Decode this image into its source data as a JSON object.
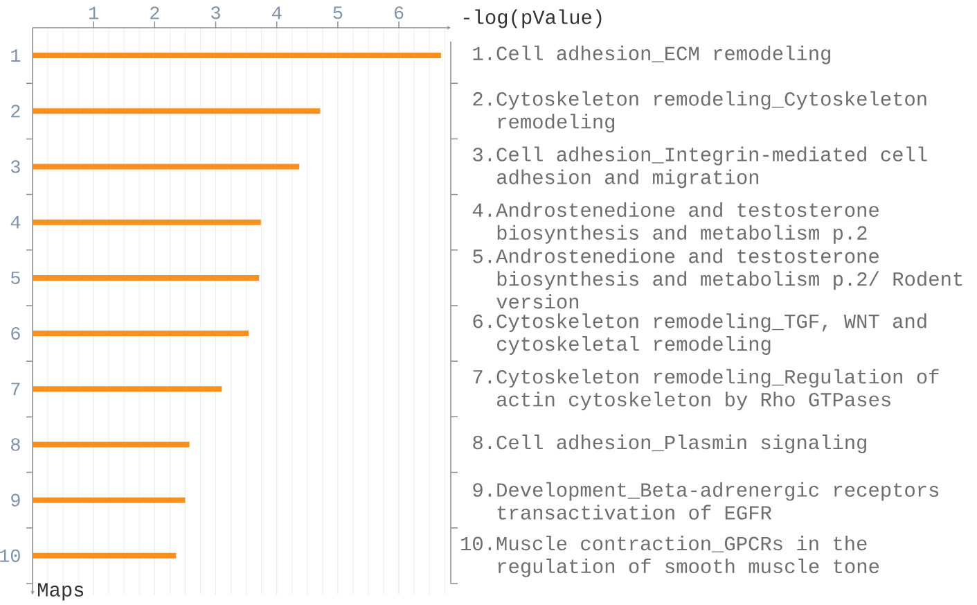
{
  "chart_data": {
    "type": "bar",
    "orientation": "horizontal",
    "xlabel": "-log(pValue)",
    "ylabel": "Maps",
    "categories": [
      "1",
      "2",
      "3",
      "4",
      "5",
      "6",
      "7",
      "8",
      "9",
      "10"
    ],
    "values": [
      6.69,
      4.71,
      4.37,
      3.74,
      3.71,
      3.54,
      3.1,
      2.57,
      2.5,
      2.35
    ],
    "color": "#f7901e",
    "xlim": [
      0,
      6.85
    ],
    "xticks": [
      1,
      2,
      3,
      4,
      5,
      6
    ],
    "grid": "x",
    "annotations": [
      "1.Cell adhesion_ECM remodeling",
      "2.Cytoskeleton remodeling_Cytoskeleton remodeling",
      "3.Cell adhesion_Integrin-mediated cell adhesion and migration",
      "4.Androstenedione and testosterone biosynthesis and metabolism p.2",
      "5.Androstenedione and testosterone biosynthesis and metabolism p.2/ Rodent version",
      "6.Cytoskeleton remodeling_TGF, WNT and cytoskeletal remodeling",
      "7.Cytoskeleton remodeling_Regulation of actin cytoskeleton by Rho GTPases",
      "8.Cell adhesion_Plasmin signaling",
      "9.Development_Beta-adrenergic receptors transactivation of EGFR",
      "10.Muscle contraction_GPCRs in the regulation of smooth muscle tone"
    ]
  }
}
